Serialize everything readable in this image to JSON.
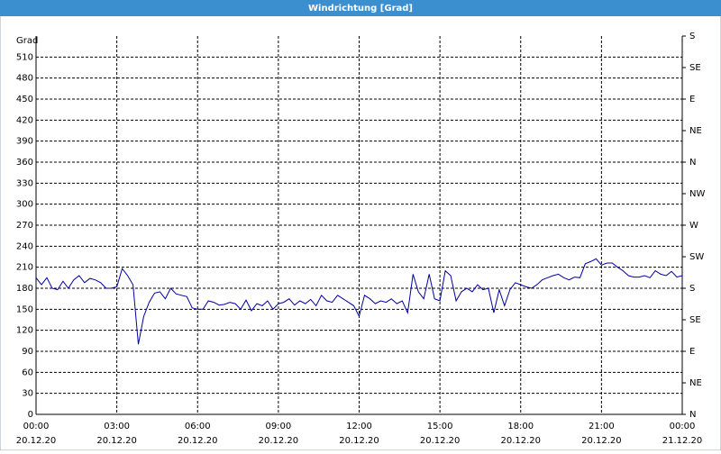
{
  "chart_data": {
    "type": "line",
    "title": "Windrichtung [Grad]",
    "y_label": "Grad",
    "xlim": [
      0,
      24
    ],
    "xticks": [
      {
        "value": 0,
        "label": "00:00"
      },
      {
        "value": 3,
        "label": "03:00"
      },
      {
        "value": 6,
        "label": "06:00"
      },
      {
        "value": 9,
        "label": "09:00"
      },
      {
        "value": 12,
        "label": "12:00"
      },
      {
        "value": 15,
        "label": "15:00"
      },
      {
        "value": 18,
        "label": "18:00"
      },
      {
        "value": 21,
        "label": "21:00"
      },
      {
        "value": 24,
        "label": "00:00"
      }
    ],
    "xtick_dates": [
      "20.12.20",
      "20.12.20",
      "20.12.20",
      "20.12.20",
      "20.12.20",
      "20.12.20",
      "20.12.20",
      "20.12.20",
      "21.12.20"
    ],
    "ylim": [
      0,
      540
    ],
    "yticks": [
      0,
      30,
      60,
      90,
      120,
      150,
      180,
      210,
      240,
      270,
      300,
      330,
      360,
      390,
      420,
      450,
      480,
      510
    ],
    "y2lim": [
      0,
      540
    ],
    "y2ticks": [
      {
        "value": 0,
        "label": "N"
      },
      {
        "value": 45,
        "label": "NE"
      },
      {
        "value": 90,
        "label": "E"
      },
      {
        "value": 135,
        "label": "SE"
      },
      {
        "value": 180,
        "label": "S"
      },
      {
        "value": 225,
        "label": "SW"
      },
      {
        "value": 270,
        "label": "W"
      },
      {
        "value": 315,
        "label": "NW"
      },
      {
        "value": 360,
        "label": "N"
      },
      {
        "value": 405,
        "label": "NE"
      },
      {
        "value": 450,
        "label": "E"
      },
      {
        "value": 495,
        "label": "SE"
      },
      {
        "value": 540,
        "label": "S"
      }
    ],
    "grid": true,
    "x": [
      0,
      0.2,
      0.4,
      0.6,
      0.8,
      1,
      1.2,
      1.4,
      1.6,
      1.8,
      2,
      2.2,
      2.4,
      2.6,
      2.8,
      3,
      3.2,
      3.4,
      3.6,
      3.8,
      4,
      4.2,
      4.4,
      4.6,
      4.8,
      5,
      5.2,
      5.4,
      5.6,
      5.8,
      6,
      6.2,
      6.4,
      6.6,
      6.8,
      7,
      7.2,
      7.4,
      7.6,
      7.8,
      8,
      8.2,
      8.4,
      8.6,
      8.8,
      9,
      9.2,
      9.4,
      9.6,
      9.8,
      10,
      10.2,
      10.4,
      10.6,
      10.8,
      11,
      11.2,
      11.4,
      11.6,
      11.8,
      12,
      12.2,
      12.4,
      12.6,
      12.8,
      13,
      13.2,
      13.4,
      13.6,
      13.8,
      14,
      14.2,
      14.4,
      14.6,
      14.8,
      15,
      15.2,
      15.4,
      15.6,
      15.8,
      16,
      16.2,
      16.4,
      16.6,
      16.8,
      17,
      17.2,
      17.4,
      17.6,
      17.8,
      18,
      18.2,
      18.4,
      18.6,
      18.8,
      19,
      19.2,
      19.4,
      19.6,
      19.8,
      20,
      20.2,
      20.4,
      20.6,
      20.8,
      21,
      21.2,
      21.4,
      21.6,
      21.8,
      22,
      22.2,
      22.4,
      22.6,
      22.8,
      23,
      23.2,
      23.4,
      23.6,
      23.8,
      24
    ],
    "series": [
      {
        "color": "#0000a0",
        "values": [
          195,
          185,
          195,
          180,
          178,
          190,
          180,
          192,
          198,
          188,
          194,
          192,
          188,
          180,
          180,
          182,
          208,
          198,
          185,
          100,
          140,
          160,
          173,
          175,
          165,
          180,
          172,
          170,
          168,
          152,
          150,
          150,
          162,
          160,
          156,
          157,
          160,
          158,
          150,
          163,
          148,
          158,
          155,
          162,
          150,
          158,
          160,
          165,
          156,
          162,
          158,
          164,
          155,
          170,
          162,
          160,
          170,
          165,
          160,
          155,
          140,
          170,
          165,
          158,
          162,
          160,
          165,
          158,
          162,
          145,
          200,
          175,
          165,
          200,
          165,
          162,
          205,
          198,
          162,
          175,
          180,
          175,
          185,
          178,
          180,
          145,
          178,
          155,
          178,
          188,
          185,
          182,
          180,
          185,
          192,
          195,
          198,
          200,
          195,
          192,
          196,
          195,
          215,
          218,
          222,
          213,
          216,
          216,
          210,
          205,
          198,
          196,
          196,
          198,
          195,
          205,
          200,
          198,
          204,
          196,
          198
        ]
      }
    ]
  }
}
